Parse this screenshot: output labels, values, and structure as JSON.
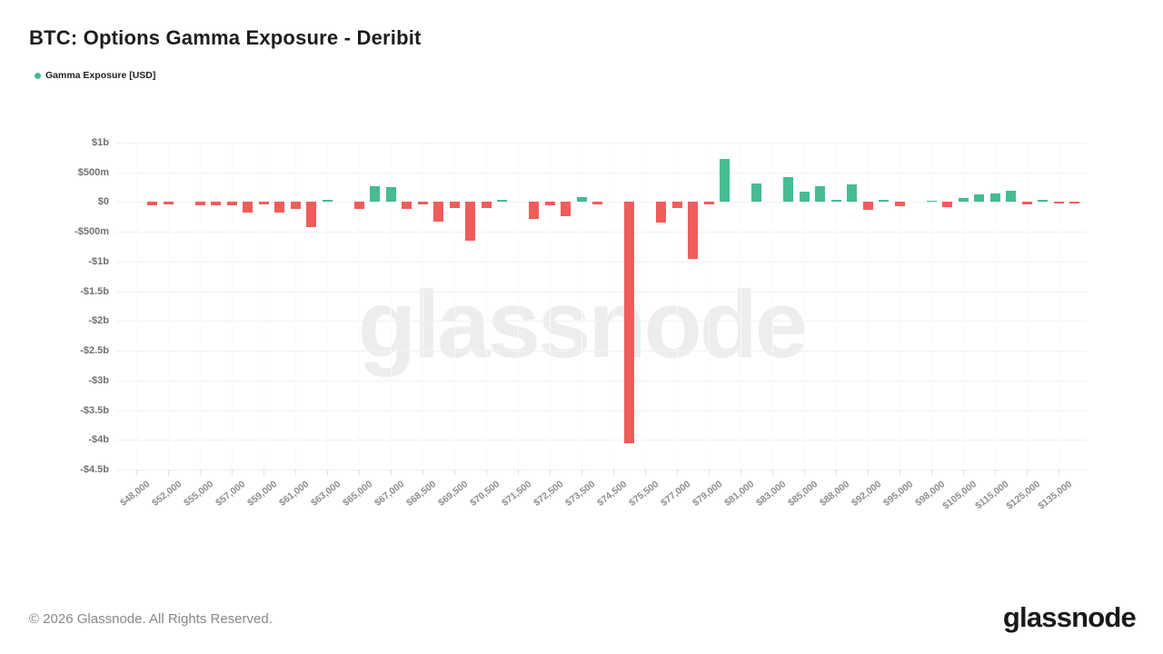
{
  "header": {
    "title": "BTC: Options Gamma Exposure - Deribit"
  },
  "legend": {
    "label": "Gamma Exposure [USD]"
  },
  "watermark": "glassnode",
  "footer": {
    "copyright": "© 2026 Glassnode. All Rights Reserved.",
    "brand": "glassnode"
  },
  "colors": {
    "positive": "#45BD8F",
    "negative": "#F05C5C",
    "grid": "#f1f1f1",
    "legend_dot": "#3EBD8C"
  },
  "chart_data": {
    "type": "bar",
    "title": "BTC: Options Gamma Exposure - Deribit",
    "series_name": "Gamma Exposure [USD]",
    "value_unit": "USD millions",
    "ylim": [
      -4500,
      1000
    ],
    "grid": true,
    "legend_position": "top-left",
    "y_ticks": [
      {
        "label": "$1b",
        "value": 1000
      },
      {
        "label": "$500m",
        "value": 500
      },
      {
        "label": "$0",
        "value": 0
      },
      {
        "label": "-$500m",
        "value": -500
      },
      {
        "label": "-$1b",
        "value": -1000
      },
      {
        "label": "-$1.5b",
        "value": -1500
      },
      {
        "label": "-$2b",
        "value": -2000
      },
      {
        "label": "-$2.5b",
        "value": -2500
      },
      {
        "label": "-$3b",
        "value": -3000
      },
      {
        "label": "-$3.5b",
        "value": -3500
      },
      {
        "label": "-$4b",
        "value": -4000
      },
      {
        "label": "-$4.5b",
        "value": -4500
      }
    ],
    "x_note": "labels shown on every second bar slot; unlabeled slots are intermediate strikes",
    "bars": [
      {
        "label": "$48,000",
        "value": 0
      },
      {
        "label": "",
        "value": -55
      },
      {
        "label": "$52,000",
        "value": -45
      },
      {
        "label": "",
        "value": 0
      },
      {
        "label": "$55,000",
        "value": -60
      },
      {
        "label": "",
        "value": -55
      },
      {
        "label": "$57,000",
        "value": -55
      },
      {
        "label": "",
        "value": -180
      },
      {
        "label": "$59,000",
        "value": -45
      },
      {
        "label": "",
        "value": -180
      },
      {
        "label": "$61,000",
        "value": -115
      },
      {
        "label": "",
        "value": -420
      },
      {
        "label": "$63,000",
        "value": 30
      },
      {
        "label": "",
        "value": 0
      },
      {
        "label": "$65,000",
        "value": -120
      },
      {
        "label": "",
        "value": 260
      },
      {
        "label": "$67,000",
        "value": 250
      },
      {
        "label": "",
        "value": -115
      },
      {
        "label": "$68,500",
        "value": -40
      },
      {
        "label": "",
        "value": -330
      },
      {
        "label": "$69,500",
        "value": -95
      },
      {
        "label": "",
        "value": -650
      },
      {
        "label": "$70,500",
        "value": -100
      },
      {
        "label": "",
        "value": 30
      },
      {
        "label": "$71,500",
        "value": 0
      },
      {
        "label": "",
        "value": -290
      },
      {
        "label": "$72,500",
        "value": -50
      },
      {
        "label": "",
        "value": -230
      },
      {
        "label": "$73,500",
        "value": 80
      },
      {
        "label": "",
        "value": -40
      },
      {
        "label": "$74,500",
        "value": 0
      },
      {
        "label": "",
        "value": -4050
      },
      {
        "label": "$75,500",
        "value": 0
      },
      {
        "label": "",
        "value": -340
      },
      {
        "label": "$77,000",
        "value": -105
      },
      {
        "label": "",
        "value": -960
      },
      {
        "label": "$79,000",
        "value": -45
      },
      {
        "label": "",
        "value": 720
      },
      {
        "label": "$81,000",
        "value": 0
      },
      {
        "label": "",
        "value": 315
      },
      {
        "label": "$83,000",
        "value": 0
      },
      {
        "label": "",
        "value": 420
      },
      {
        "label": "$85,000",
        "value": 175
      },
      {
        "label": "",
        "value": 260
      },
      {
        "label": "$88,000",
        "value": 30
      },
      {
        "label": "",
        "value": 290
      },
      {
        "label": "$92,000",
        "value": -130
      },
      {
        "label": "",
        "value": 45
      },
      {
        "label": "$95,000",
        "value": -70
      },
      {
        "label": "",
        "value": 0
      },
      {
        "label": "$98,000",
        "value": 20
      },
      {
        "label": "",
        "value": -80
      },
      {
        "label": "$105,000",
        "value": 70
      },
      {
        "label": "",
        "value": 125
      },
      {
        "label": "$115,000",
        "value": 145
      },
      {
        "label": "",
        "value": 195
      },
      {
        "label": "$125,000",
        "value": -40
      },
      {
        "label": "",
        "value": 45
      },
      {
        "label": "$135,000",
        "value": -15
      },
      {
        "label": "",
        "value": -15
      }
    ]
  }
}
